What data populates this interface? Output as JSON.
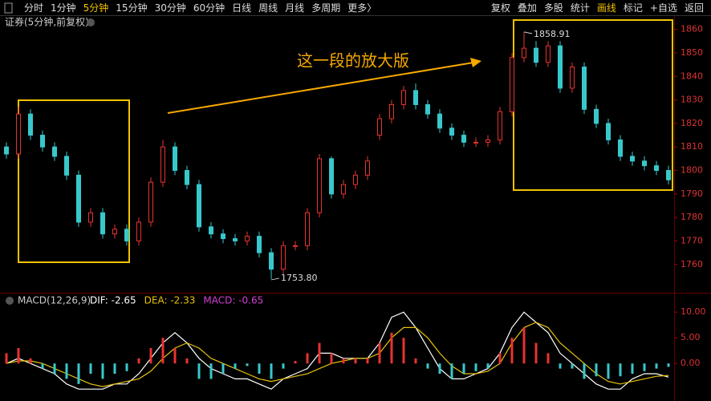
{
  "toolbar": {
    "periods": [
      "分时",
      "1分钟",
      "5分钟",
      "15分钟",
      "30分钟",
      "60分钟",
      "日线",
      "周线",
      "月线",
      "多周期",
      "更多〉"
    ],
    "tools": [
      "复权",
      "叠加",
      "多股",
      "统计",
      "画线",
      "标记",
      "+自选",
      "返回"
    ]
  },
  "annotation": "这一段的放大版",
  "chart_data": [
    {
      "type": "candlestick",
      "title": "证券(5分钟,前复权)",
      "up_color": "#e8332f",
      "down_color": "#38c8cc",
      "open": [
        1810,
        1807,
        1824,
        1815,
        1810,
        1806,
        1798,
        1778,
        1782,
        1773,
        1775,
        1770,
        1778,
        1795,
        1810,
        1800,
        1794,
        1776,
        1773,
        1771,
        1770,
        1772,
        1765,
        1758,
        1768,
        1768,
        1782,
        1805,
        1790,
        1794,
        1798,
        1815,
        1822,
        1828,
        1834,
        1828,
        1824,
        1818,
        1815,
        1812,
        1812,
        1813,
        1825,
        1848,
        1852,
        1846,
        1853,
        1835,
        1844,
        1826,
        1820,
        1813,
        1806,
        1804,
        1802,
        1800
      ],
      "close": [
        1807,
        1824,
        1815,
        1810,
        1806,
        1798,
        1778,
        1782,
        1773,
        1775,
        1770,
        1778,
        1795,
        1810,
        1800,
        1794,
        1776,
        1773,
        1771,
        1770,
        1772,
        1765,
        1758,
        1768,
        1768,
        1782,
        1805,
        1790,
        1794,
        1798,
        1804,
        1822,
        1828,
        1834,
        1828,
        1824,
        1818,
        1815,
        1812,
        1812,
        1813,
        1825,
        1848,
        1852,
        1846,
        1853,
        1835,
        1844,
        1826,
        1820,
        1813,
        1806,
        1804,
        1802,
        1800,
        1796
      ],
      "high": [
        1812,
        1827,
        1826,
        1817,
        1812,
        1808,
        1800,
        1784,
        1784,
        1777,
        1777,
        1780,
        1797,
        1813,
        1812,
        1802,
        1796,
        1778,
        1775,
        1773,
        1774,
        1774,
        1767,
        1770,
        1770,
        1784,
        1807,
        1806,
        1796,
        1800,
        1806,
        1824,
        1830,
        1836,
        1837,
        1830,
        1826,
        1820,
        1817,
        1814,
        1815,
        1827,
        1850,
        1858.91,
        1855,
        1855,
        1855,
        1846,
        1846,
        1828,
        1822,
        1815,
        1808,
        1806,
        1804,
        1802
      ],
      "low": [
        1805,
        1805,
        1813,
        1808,
        1804,
        1796,
        1776,
        1776,
        1771,
        1771,
        1768,
        1768,
        1776,
        1793,
        1798,
        1792,
        1774,
        1771,
        1769,
        1768,
        1768,
        1763,
        1753.8,
        1756,
        1766,
        1766,
        1780,
        1788,
        1788,
        1792,
        1796,
        1813,
        1820,
        1826,
        1826,
        1822,
        1816,
        1813,
        1810,
        1810,
        1810,
        1811,
        1823,
        1846,
        1844,
        1844,
        1833,
        1833,
        1824,
        1818,
        1811,
        1804,
        1802,
        1800,
        1798,
        1794
      ],
      "max_label": "1858.91",
      "min_label": "1753.80",
      "ylim": [
        1749,
        1865
      ],
      "yticks": [
        1760,
        1770,
        1780,
        1790,
        1800,
        1810,
        1820,
        1830,
        1840,
        1850,
        1860
      ]
    },
    {
      "type": "macd",
      "title": "MACD(12,26,9)",
      "series": [
        {
          "label": "DIF: -2.65",
          "color": "#ffffff",
          "kind": "line",
          "values": [
            0,
            1,
            0,
            -1,
            -2,
            -4,
            -5,
            -5,
            -5,
            -4,
            -4,
            -2,
            1,
            4,
            6,
            4,
            1,
            -1,
            -2,
            -3,
            -3,
            -4,
            -5,
            -3,
            -2,
            -1,
            2,
            2,
            1,
            1,
            1,
            4,
            9,
            10,
            7,
            3,
            -1,
            -3,
            -3,
            -2,
            -1,
            2,
            7,
            10,
            8,
            6,
            2,
            0,
            -2,
            -4,
            -5,
            -5,
            -3,
            -2,
            -2,
            -2.65
          ]
        },
        {
          "label": "DEA: -2.33",
          "color": "#e8c20b",
          "kind": "line",
          "values": [
            0,
            0.5,
            0.5,
            0,
            -1,
            -2,
            -3,
            -4,
            -4.5,
            -4,
            -3.5,
            -3,
            -1.5,
            1,
            3,
            4,
            3,
            1,
            0,
            -1,
            -2,
            -3,
            -3.5,
            -3,
            -2.5,
            -2,
            -1,
            0,
            0.5,
            1,
            1,
            2,
            5,
            7,
            7,
            5,
            2,
            -0.5,
            -2,
            -2,
            -1.5,
            0,
            4,
            7,
            8,
            7,
            4,
            2,
            0,
            -2,
            -3.5,
            -4,
            -3.5,
            -3,
            -2.5,
            -2.33
          ]
        },
        {
          "label": "MACD: -0.65",
          "color": "#d040d0",
          "kind": "bar",
          "up_color": "#e8332f",
          "down_color": "#38c8cc",
          "values": [
            2,
            3,
            1,
            -1,
            -2,
            -3,
            -4,
            -2,
            -3,
            -2,
            -1.5,
            1,
            3,
            5,
            3,
            1,
            -3,
            -3,
            -2,
            -1,
            -0.5,
            -2,
            -3,
            -1,
            0.5,
            2,
            4,
            2,
            1,
            1,
            1,
            4,
            6,
            5,
            1,
            -1,
            -2,
            -3,
            -2,
            -1.5,
            -1,
            2,
            5,
            7,
            4,
            2,
            -1,
            -1,
            -3,
            -2.5,
            -3,
            -2.5,
            -2,
            -1.5,
            -1,
            -0.65
          ]
        }
      ],
      "ylim": [
        -7,
        13
      ],
      "yticks": [
        {
          "value": 0,
          "label": "0.00"
        },
        {
          "value": 5,
          "label": "5.00"
        },
        {
          "value": 10,
          "label": "10.00"
        }
      ]
    }
  ]
}
